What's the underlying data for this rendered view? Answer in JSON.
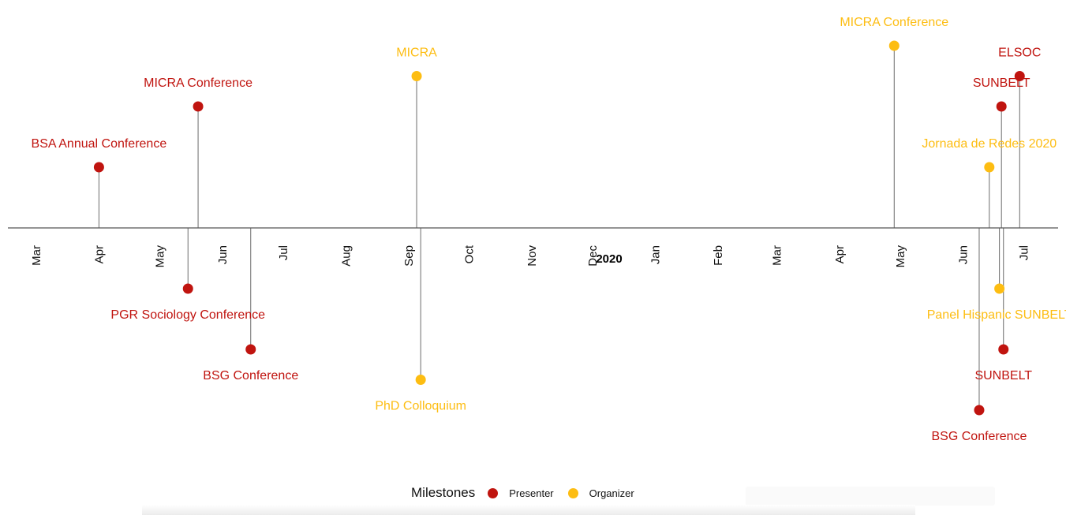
{
  "chart_data": {
    "type": "scatter",
    "subtype": "timeline",
    "year_label": "2020",
    "months": [
      {
        "label": "Mar",
        "date": "2019-03-01"
      },
      {
        "label": "Apr",
        "date": "2019-04-01"
      },
      {
        "label": "May",
        "date": "2019-05-01"
      },
      {
        "label": "Jun",
        "date": "2019-06-01"
      },
      {
        "label": "Jul",
        "date": "2019-07-01"
      },
      {
        "label": "Aug",
        "date": "2019-08-01"
      },
      {
        "label": "Sep",
        "date": "2019-09-01"
      },
      {
        "label": "Oct",
        "date": "2019-10-01"
      },
      {
        "label": "Nov",
        "date": "2019-11-01"
      },
      {
        "label": "Dec",
        "date": "2019-12-01"
      },
      {
        "label": "Jan",
        "date": "2020-01-01"
      },
      {
        "label": "Feb",
        "date": "2020-02-01"
      },
      {
        "label": "Mar",
        "date": "2020-03-01"
      },
      {
        "label": "Apr",
        "date": "2020-04-01"
      },
      {
        "label": "May",
        "date": "2020-05-01"
      },
      {
        "label": "Jun",
        "date": "2020-06-01"
      },
      {
        "label": "Jul",
        "date": "2020-07-01"
      }
    ],
    "x_range": [
      "2019-02-15",
      "2020-07-18"
    ],
    "y_range": [
      -7,
      7
    ],
    "colors": {
      "Presenter": "#C0140F",
      "Organizer": "#FDBD12"
    },
    "events": [
      {
        "name": "BSA Annual Conference",
        "date": "2019-04-01",
        "position": 2,
        "status": "Presenter"
      },
      {
        "name": "MICRA Conference",
        "date": "2019-05-20",
        "position": 4,
        "status": "Presenter"
      },
      {
        "name": "PGR Sociology Conference",
        "date": "2019-05-15",
        "position": -2,
        "status": "Presenter"
      },
      {
        "name": "BSG Conference",
        "date": "2019-06-15",
        "position": -4,
        "status": "Presenter"
      },
      {
        "name": "MICRA",
        "date": "2019-09-05",
        "position": 5,
        "status": "Organizer"
      },
      {
        "name": "PhD Colloquium",
        "date": "2019-09-07",
        "position": -5,
        "status": "Organizer"
      },
      {
        "name": "MICRA Conference",
        "date": "2020-04-28",
        "position": 6,
        "status": "Organizer"
      },
      {
        "name": "Jornada de Redes 2020",
        "date": "2020-06-14",
        "position": 2,
        "status": "Organizer"
      },
      {
        "name": "SUNBELT",
        "date": "2020-06-20",
        "position": 4,
        "status": "Presenter"
      },
      {
        "name": "ELSOC",
        "date": "2020-06-29",
        "position": 5,
        "status": "Presenter"
      },
      {
        "name": "Panel Hispanic SUNBELT",
        "date": "2020-06-19",
        "position": -2,
        "status": "Organizer"
      },
      {
        "name": "SUNBELT",
        "date": "2020-06-21",
        "position": -4,
        "status": "Presenter"
      },
      {
        "name": "BSG Conference",
        "date": "2020-06-09",
        "position": -6,
        "status": "Presenter"
      }
    ],
    "legend": {
      "title": "Milestones",
      "entries": [
        {
          "label": "Presenter",
          "color": "#C0140F"
        },
        {
          "label": "Organizer",
          "color": "#FDBD12"
        }
      ],
      "placement": "bottom"
    },
    "grid": false,
    "title": "",
    "xlabel": "2020",
    "ylabel": ""
  }
}
